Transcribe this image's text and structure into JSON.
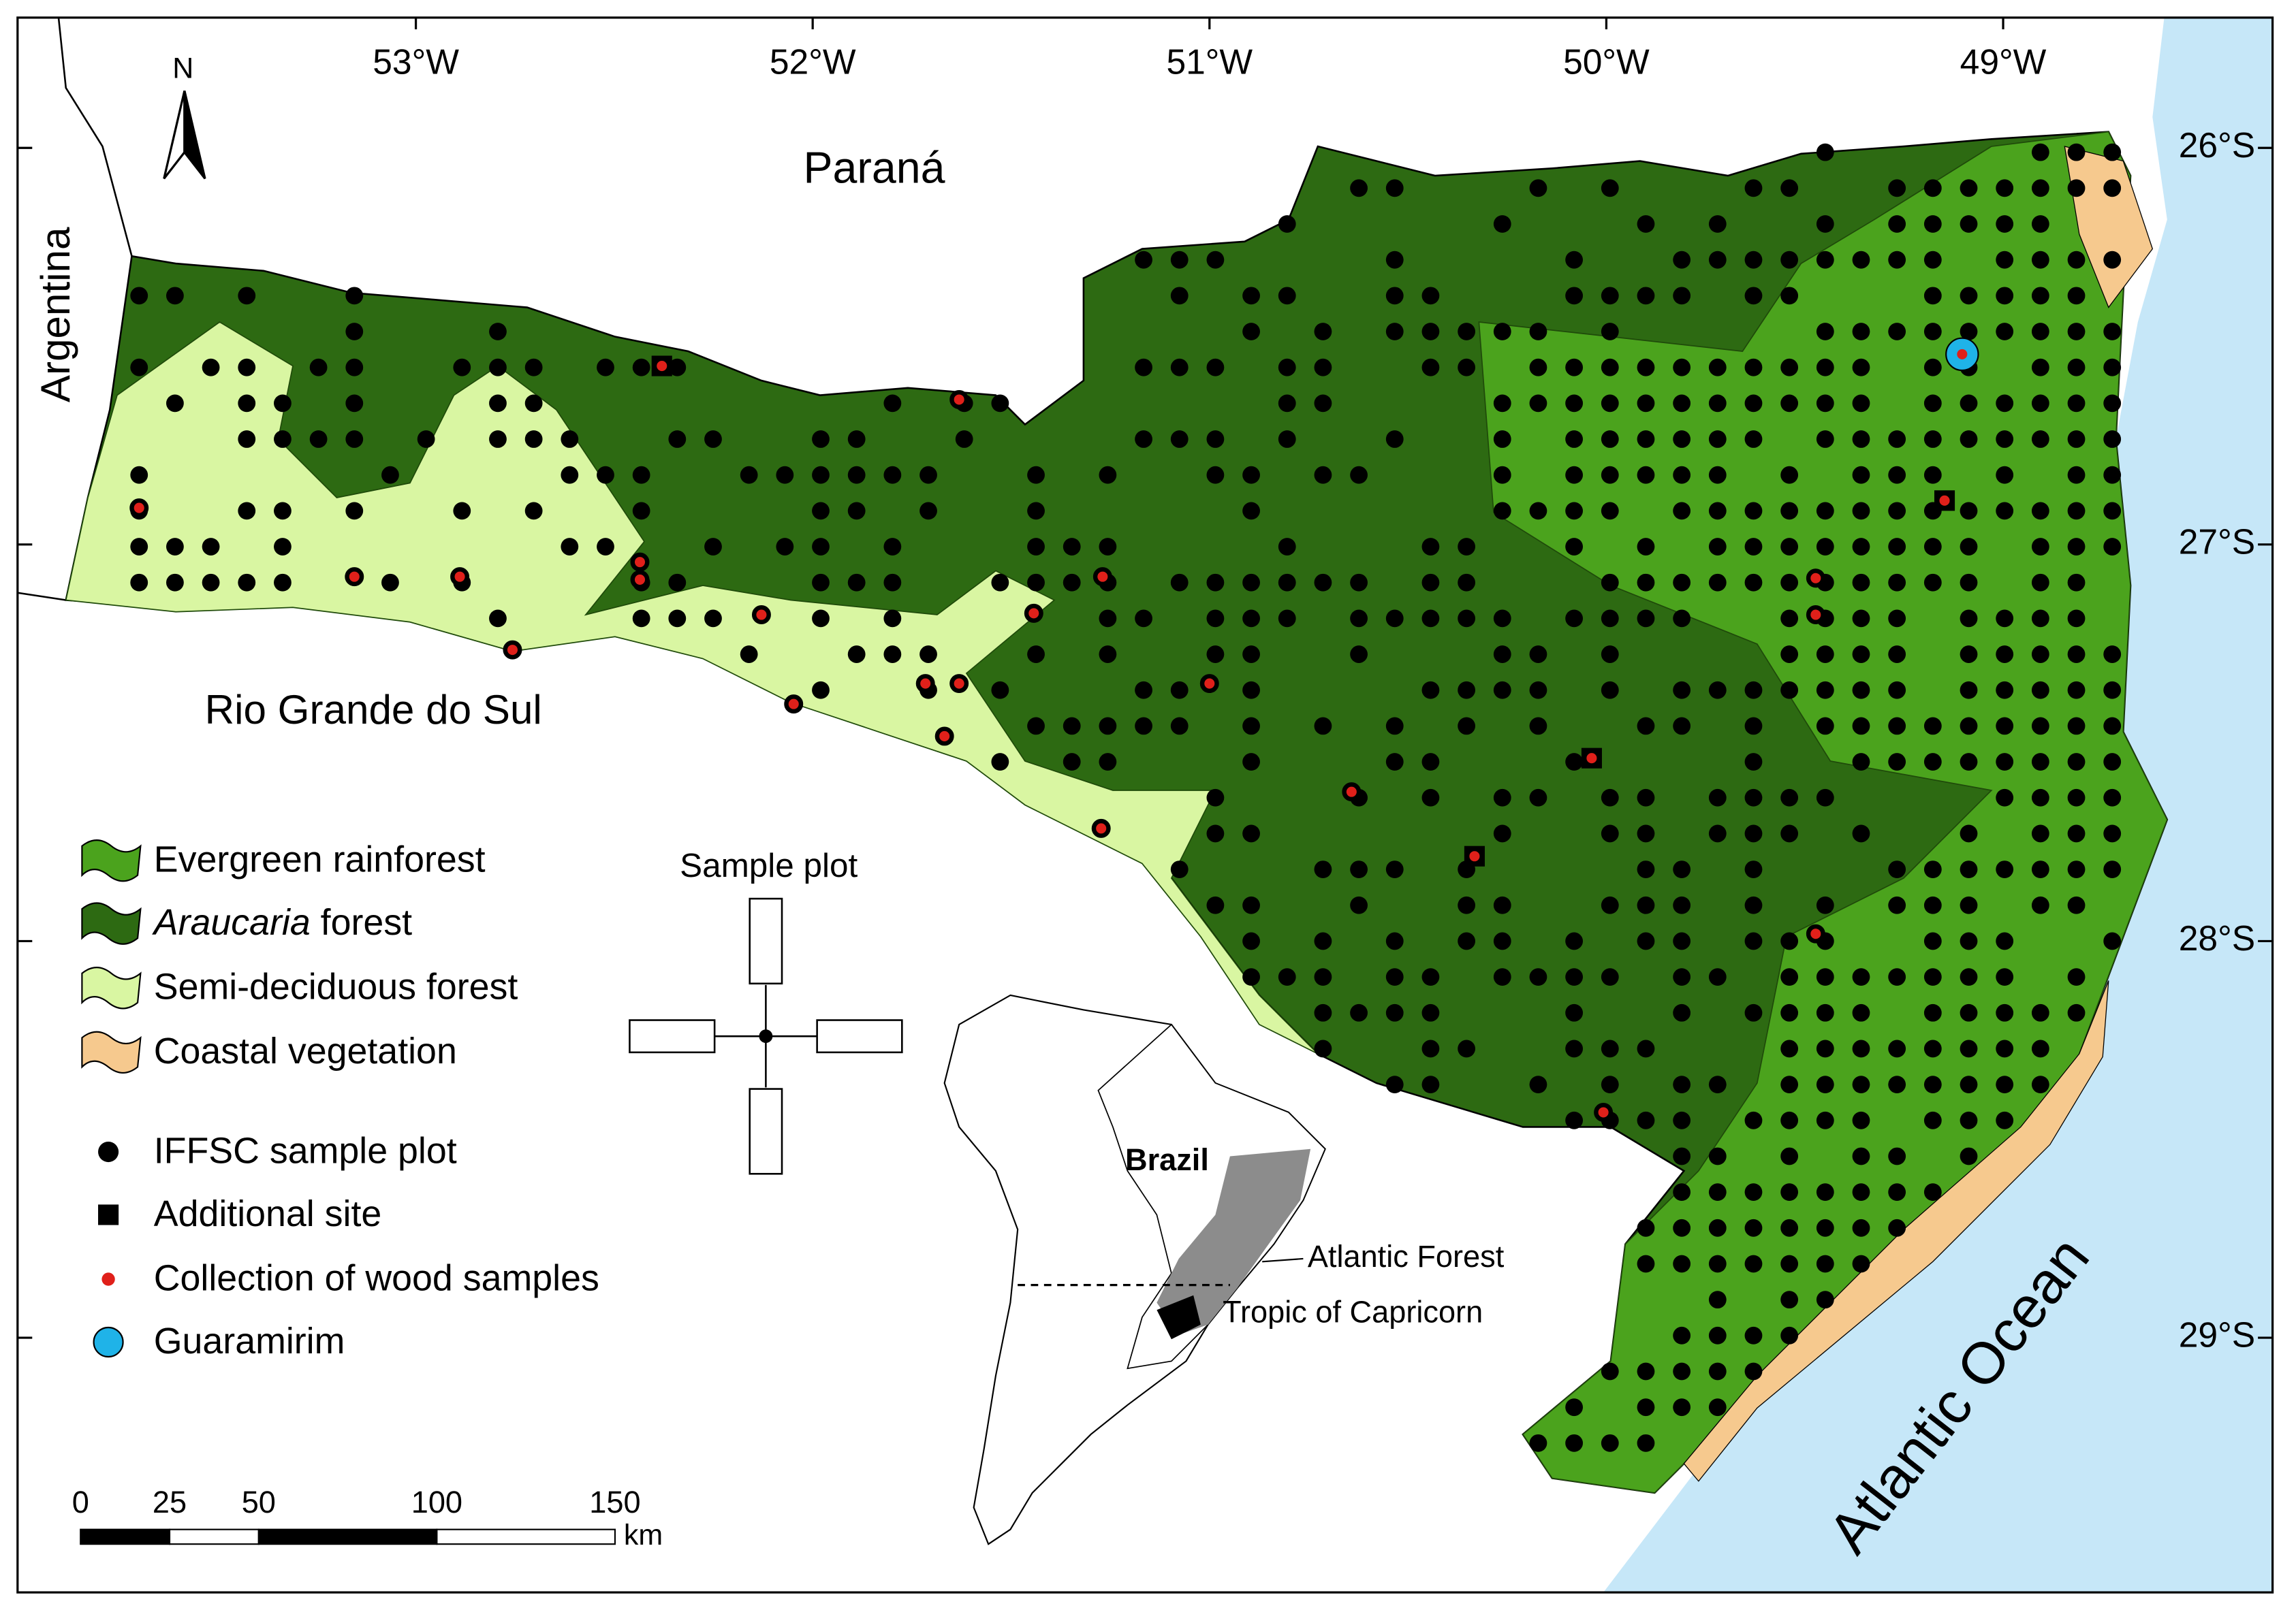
{
  "map": {
    "north": "N",
    "longitudes": [
      {
        "value": -53,
        "label": "53°W"
      },
      {
        "value": -52,
        "label": "52°W"
      },
      {
        "value": -51,
        "label": "51°W"
      },
      {
        "value": -50,
        "label": "50°W"
      },
      {
        "value": -49,
        "label": "49°W"
      }
    ],
    "latitudes": [
      {
        "value": -26,
        "label": "26°S"
      },
      {
        "value": -27,
        "label": "27°S"
      },
      {
        "value": -28,
        "label": "28°S"
      },
      {
        "value": -29,
        "label": "29°S"
      }
    ],
    "places": {
      "parana": "Paraná",
      "rio_grande_do_sul": "Rio Grande do Sul",
      "argentina": "Argentina",
      "atlantic_ocean": "Atlantic Ocean"
    }
  },
  "legend": {
    "evergreen": "Evergreen rainforest",
    "araucaria": {
      "italic": "Araucaria",
      "text": "forest"
    },
    "semi_deciduous": "Semi-deciduous forest",
    "coastal": "Coastal vegetation",
    "iffsc": "IFFSC sample plot",
    "additional": "Additional site",
    "collection": "Collection of wood samples",
    "guaramirim": "Guaramirim"
  },
  "sample_plot": "Sample plot",
  "scale_bar": {
    "ticks": [
      0,
      25,
      50,
      100,
      150
    ],
    "unit": "km"
  },
  "inset": {
    "country": "Brazil",
    "forest": "Atlantic Forest",
    "tropic": "Tropic of Capricorn"
  }
}
